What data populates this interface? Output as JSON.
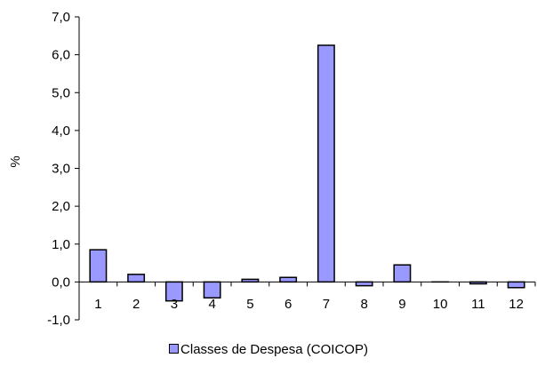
{
  "chart_data": {
    "type": "bar",
    "categories": [
      "1",
      "2",
      "3",
      "4",
      "5",
      "6",
      "7",
      "8",
      "9",
      "10",
      "11",
      "12"
    ],
    "series": [
      {
        "name": "Classes de Despesa (COICOP)",
        "values": [
          0.85,
          0.2,
          -0.5,
          -0.42,
          0.07,
          0.12,
          6.25,
          -0.1,
          0.45,
          0.0,
          -0.05,
          -0.15
        ]
      }
    ],
    "ylabel": "%",
    "xlabel": "",
    "ylim": [
      -1.0,
      7.0
    ],
    "yticks": [
      "-1,0",
      "0,0",
      "1,0",
      "2,0",
      "3,0",
      "4,0",
      "5,0",
      "6,0",
      "7,0"
    ],
    "grid": false,
    "legend_position": "bottom-center",
    "bar_color": "#9999ff",
    "bar_edge_color": "#000000"
  }
}
